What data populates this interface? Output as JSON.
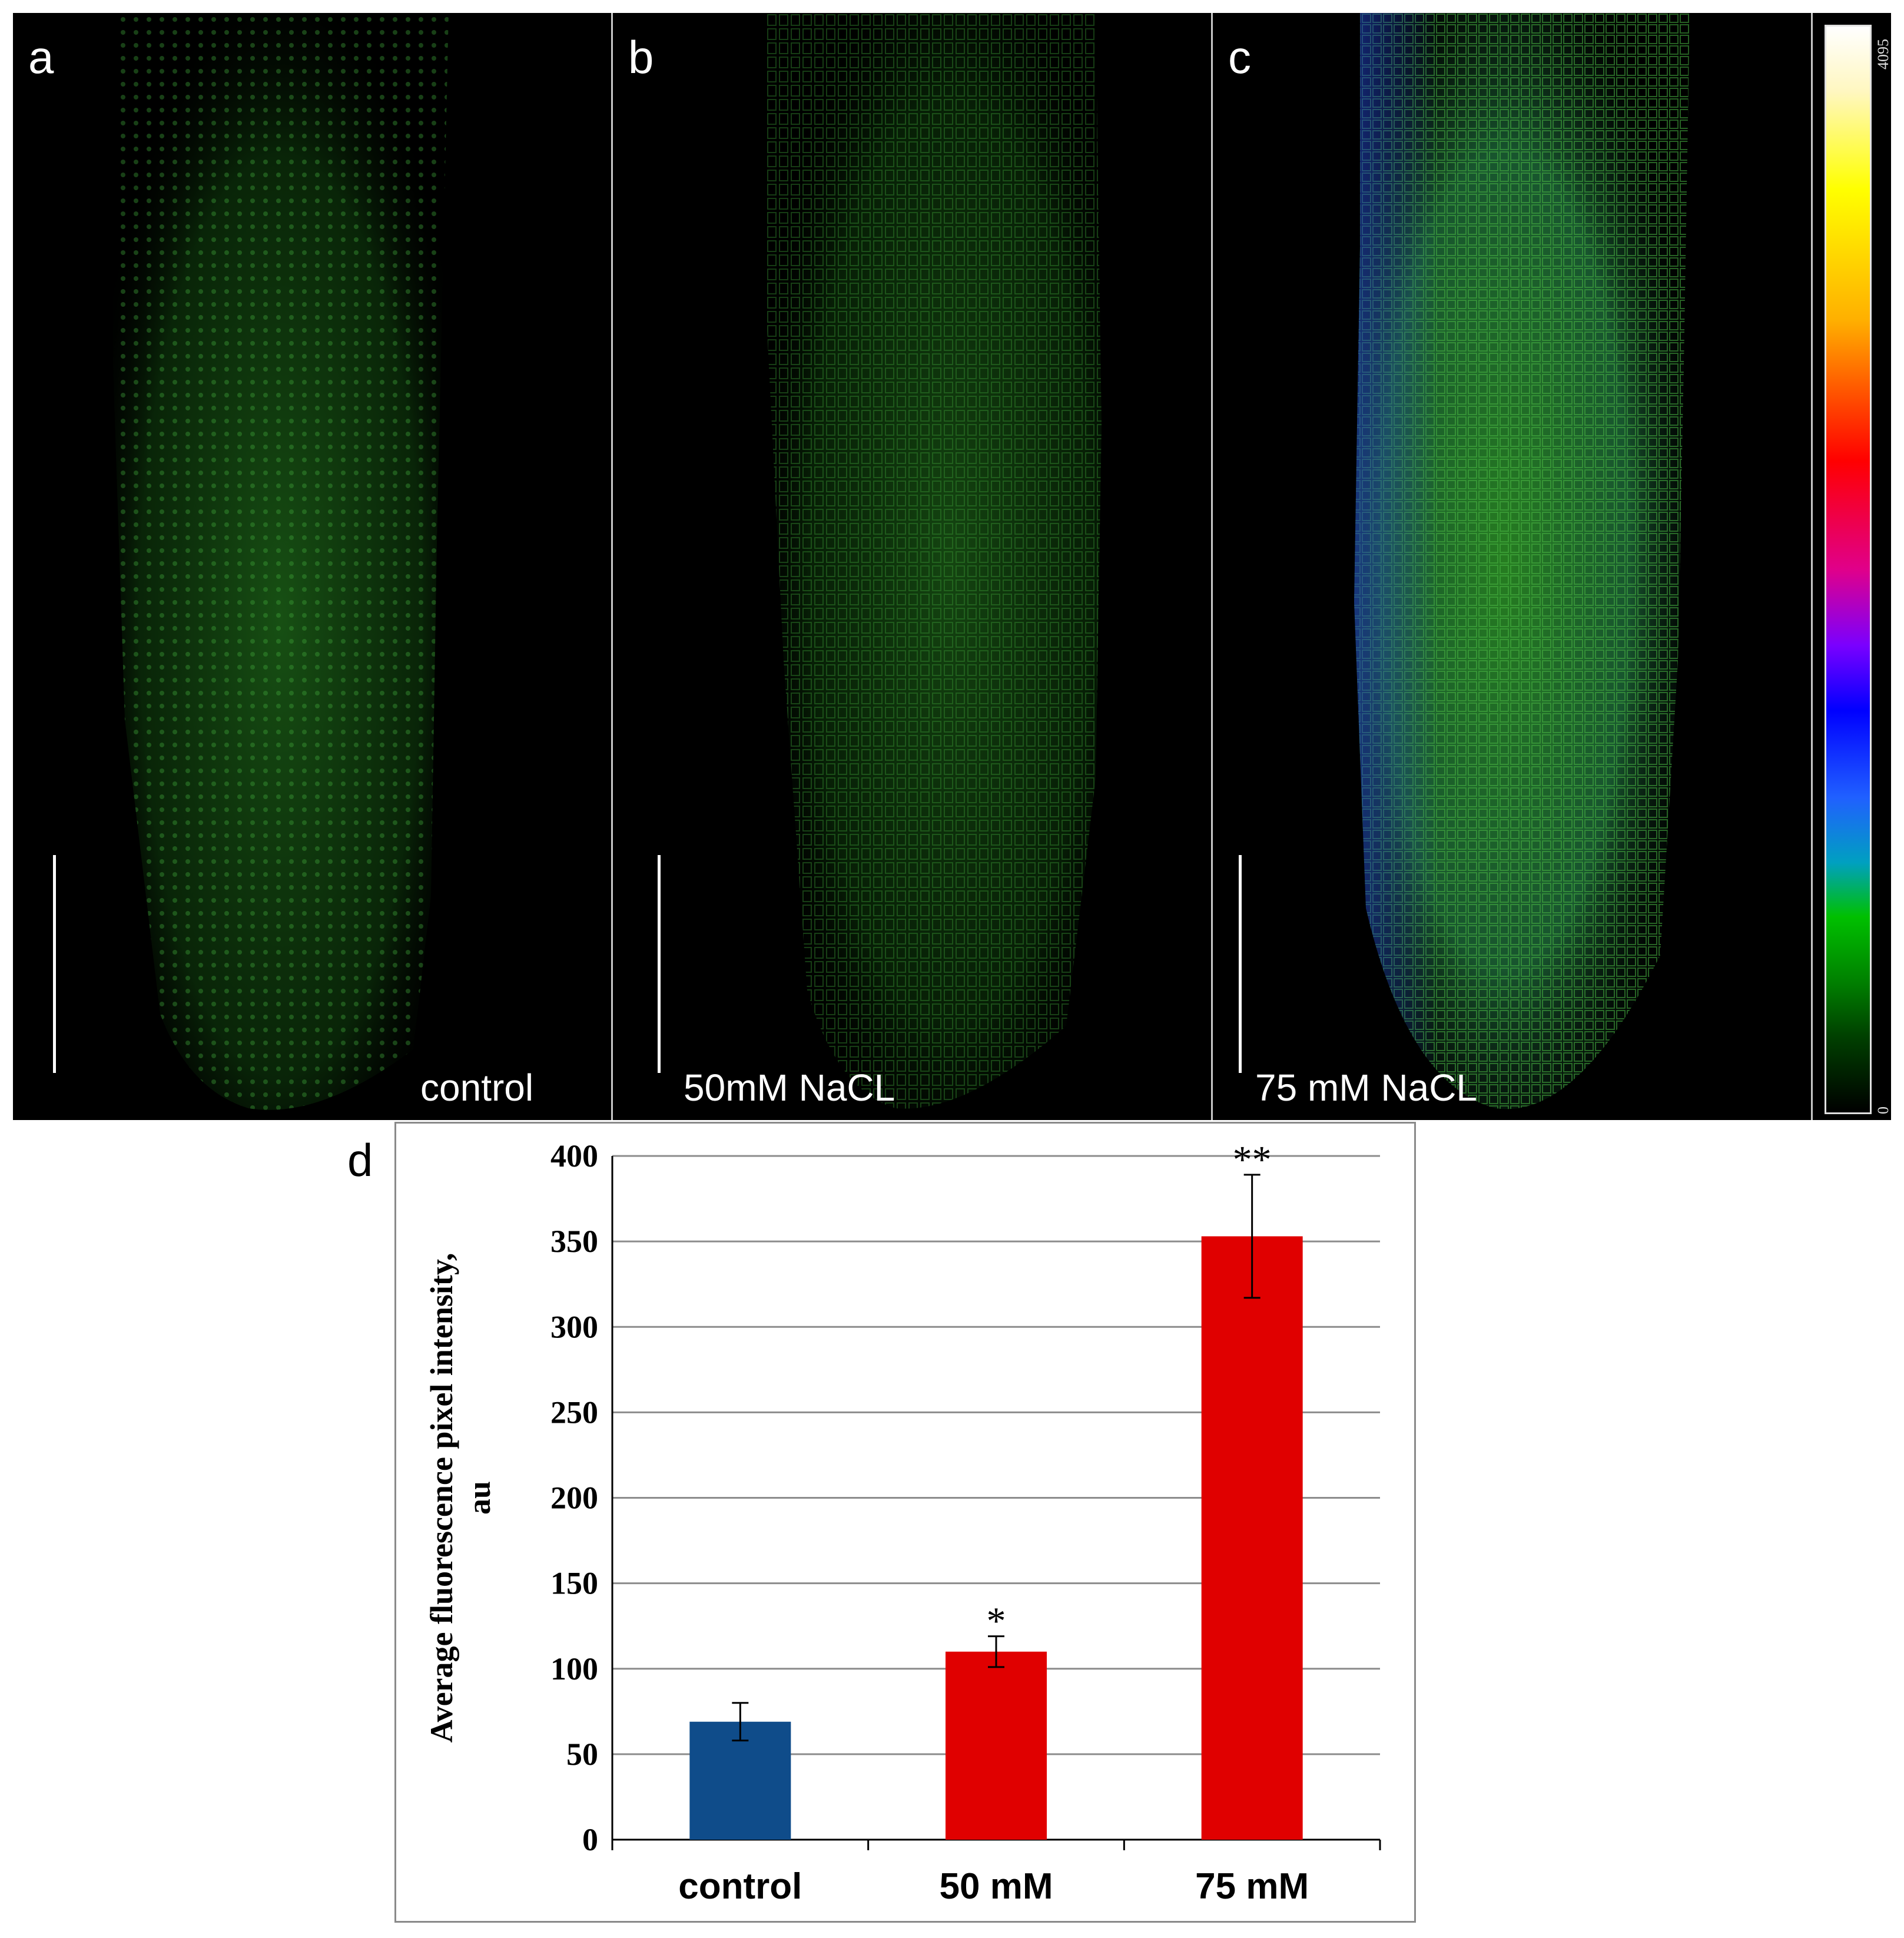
{
  "panels": [
    {
      "letter": "a",
      "caption": "control"
    },
    {
      "letter": "b",
      "caption": "50mM NaCL"
    },
    {
      "letter": "c",
      "caption": "75 mM NaCL"
    }
  ],
  "colorbar": {
    "max_label": "4095",
    "min_label": "0"
  },
  "panel_d_letter": "d",
  "chart_data": {
    "type": "bar",
    "title": "",
    "categories": [
      "control",
      "50 mM",
      "75 mM"
    ],
    "values": [
      69,
      110,
      353
    ],
    "errors": [
      11,
      9,
      36
    ],
    "significance": [
      "",
      "*",
      "**"
    ],
    "bar_colors": [
      "#0f4c8a",
      "#e00000",
      "#e00000"
    ],
    "xlabel": "",
    "ylabel": "Average fluorescence pixel intensity, au",
    "ylim": [
      0,
      400
    ],
    "yticks": [
      0,
      50,
      100,
      150,
      200,
      250,
      300,
      350,
      400
    ],
    "grid": true,
    "legend": "none"
  }
}
